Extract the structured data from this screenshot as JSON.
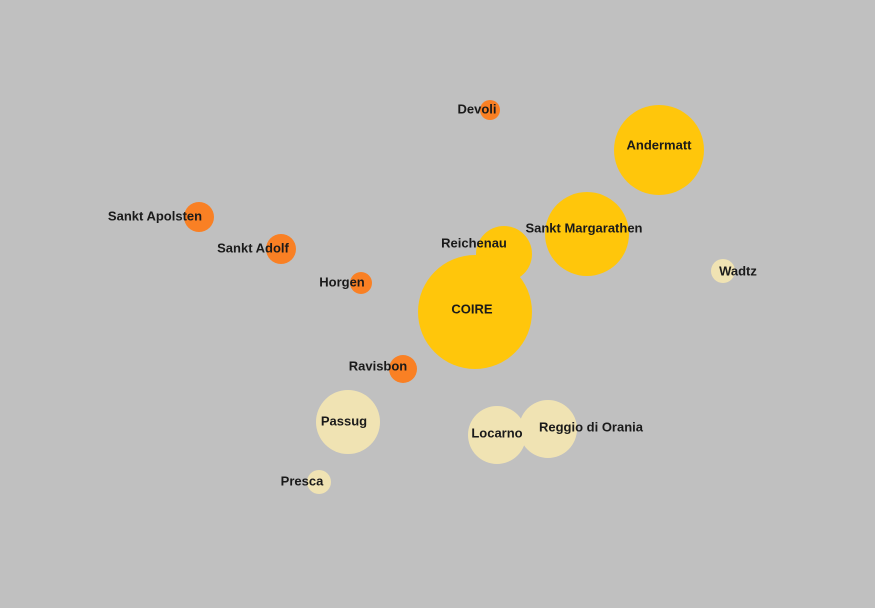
{
  "nodes": [
    {
      "label": "Devoli",
      "color": "#f98024"
    },
    {
      "label": "Andermatt",
      "color": "#ffc60b"
    },
    {
      "label": "Sankt Apolsten",
      "color": "#f98024"
    },
    {
      "label": "Sankt Adolf",
      "color": "#f98024"
    },
    {
      "label": "Reichenau",
      "color": "#ffc60b"
    },
    {
      "label": "Sankt Margarathen",
      "color": "#ffc60b"
    },
    {
      "label": "Wadtz",
      "color": "#f0e3b3"
    },
    {
      "label": "Horgen",
      "color": "#f98024"
    },
    {
      "label": "COIRE",
      "color": "#ffc60b"
    },
    {
      "label": "Ravisbon",
      "color": "#f98024"
    },
    {
      "label": "Passug",
      "color": "#f0e3b3"
    },
    {
      "label": "Locarno",
      "color": "#f0e3b3"
    },
    {
      "label": "Reggio di Orania",
      "color": "#f0e3b3"
    },
    {
      "label": "Presca",
      "color": "#f0e3b3"
    }
  ]
}
